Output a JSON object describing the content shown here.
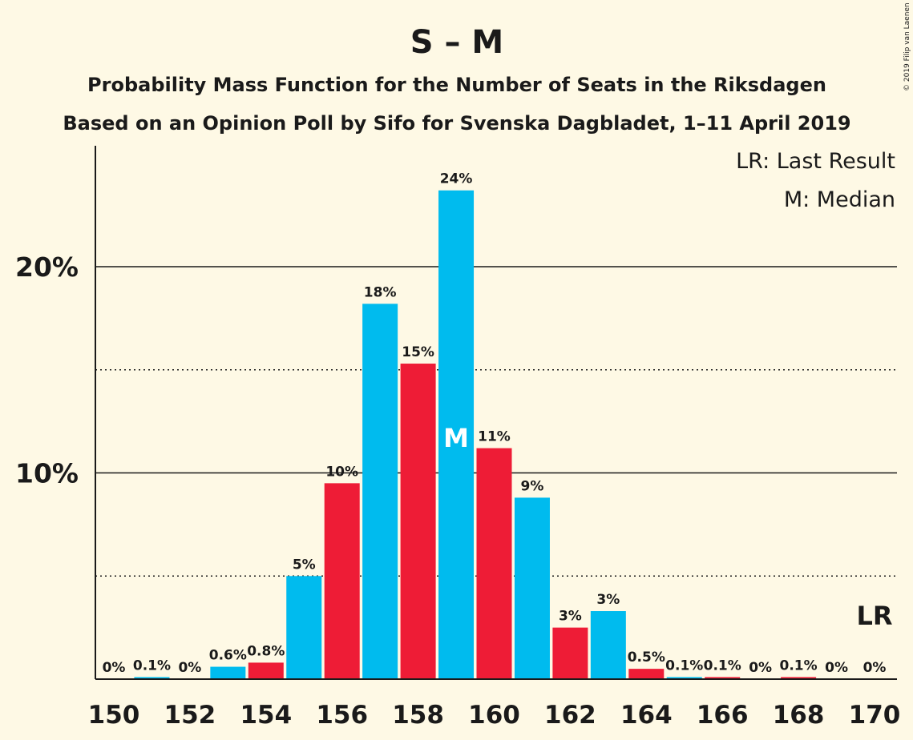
{
  "chart_data": {
    "type": "bar",
    "title": "S – M",
    "subtitle": "Probability Mass Function for the Number of Seats in the Riksdagen",
    "subtitle2": "Based on an Opinion Poll by Sifo for Svenska Dagbladet, 1–11 April 2019",
    "copyright": "© 2019 Filip van Laenen",
    "legend": {
      "last_result": "LR: Last Result",
      "median": "M: Median",
      "placement": "top-right"
    },
    "x": [
      150,
      151,
      152,
      153,
      154,
      155,
      156,
      157,
      158,
      159,
      160,
      161,
      162,
      163,
      164,
      165,
      166,
      167,
      168,
      169,
      170
    ],
    "values": [
      0,
      0.1,
      0,
      0.6,
      0.8,
      5,
      9.5,
      18.2,
      15.3,
      23.7,
      11.2,
      8.8,
      2.5,
      3.3,
      0.5,
      0.1,
      0.1,
      0,
      0.1,
      0,
      0
    ],
    "data_labels": [
      "0%",
      "0.1%",
      "0%",
      "0.6%",
      "0.8%",
      "5%",
      "10%",
      "18%",
      "15%",
      "24%",
      "11%",
      "9%",
      "3%",
      "3%",
      "0.5%",
      "0.1%",
      "0.1%",
      "0%",
      "0.1%",
      "0%",
      "0%"
    ],
    "x_tick_labels": [
      "150",
      "152",
      "154",
      "156",
      "158",
      "160",
      "162",
      "164",
      "166",
      "168",
      "170"
    ],
    "y_tick_labels": [
      "10%",
      "20%"
    ],
    "y_major_ticks": [
      10,
      20
    ],
    "y_minor_ticks": [
      5,
      15
    ],
    "ylim": [
      0,
      25.8
    ],
    "median_seat": 159,
    "median_marker": "M",
    "last_result_seat": 170,
    "last_result_marker": "LR",
    "colors": {
      "blue": "#00BBEE",
      "red": "#EE1C36",
      "background": "#FEF9E5",
      "text": "#1a1a1a"
    }
  }
}
